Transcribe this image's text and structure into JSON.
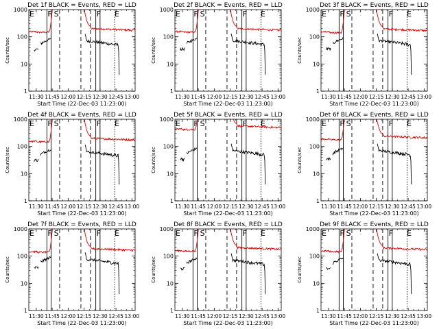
{
  "colors": {
    "events": "#000000",
    "lld": "#dd0000",
    "background": "#ffffff"
  },
  "chart_data": {
    "type": "line",
    "panels": [
      {
        "title": "Det 1f BLACK = Events, RED = LLD",
        "xlabel": "Start Time (22-Dec-03 11:23:00)",
        "ylabel": "Counts/sec",
        "red_base": 175,
        "black_base": 60
      },
      {
        "title": "Det 2f BLACK = Events, RED = LLD",
        "xlabel": "Start Time (22-Dec-03 11:23:00)",
        "ylabel": "Counts/sec",
        "red_base": 175,
        "black_base": 62
      },
      {
        "title": "Det 3f BLACK = Events, RED = LLD",
        "xlabel": "Start Time (22-Dec-03 11:23:00)",
        "ylabel": "Counts/sec",
        "red_base": 170,
        "black_base": 62
      },
      {
        "title": "Det 4f BLACK = Events, RED = LLD",
        "xlabel": "Start Time (22-Dec-03 11:23:00)",
        "ylabel": "Counts/sec",
        "red_base": 175,
        "black_base": 55
      },
      {
        "title": "Det 5f BLACK = Events, RED = LLD",
        "xlabel": "Start Time (22-Dec-03 11:23:00)",
        "ylabel": "Counts/sec",
        "red_base": 500,
        "black_base": 60
      },
      {
        "title": "Det 6f BLACK = Events, RED = LLD",
        "xlabel": "Start Time (22-Dec-03 11:23:00)",
        "ylabel": "Counts/sec",
        "red_base": 210,
        "black_base": 60
      },
      {
        "title": "Det 7f BLACK = Events, RED = LLD",
        "xlabel": "Start Time (22-Dec-03 11:23:00)",
        "ylabel": "Counts/sec",
        "red_base": 165,
        "black_base": 65
      },
      {
        "title": "Det 8f BLACK = Events, RED = LLD",
        "xlabel": "Start Time (22-Dec-03 11:23:00)",
        "ylabel": "Counts/sec",
        "red_base": 180,
        "black_base": 60
      },
      {
        "title": "Det 9f BLACK = Events, RED = LLD",
        "xlabel": "Start Time (22-Dec-03 11:23:00)",
        "ylabel": "Counts/sec",
        "red_base": 175,
        "black_base": 60
      }
    ],
    "x_range_min": [
      0,
      100
    ],
    "x_ticks": [
      {
        "label": "11:30",
        "min": 7
      },
      {
        "label": "11:45",
        "min": 22
      },
      {
        "label": "12:00",
        "min": 37
      },
      {
        "label": "12:15",
        "min": 52
      },
      {
        "label": "12:30",
        "min": 67
      },
      {
        "label": "12:45",
        "min": 82
      },
      {
        "label": "13:00",
        "min": 97
      }
    ],
    "y_range": [
      1,
      1000
    ],
    "y_scale": "log",
    "y_ticks": [
      {
        "label": "1",
        "value": 1
      },
      {
        "label": "10",
        "value": 10
      },
      {
        "label": "100",
        "value": 100
      },
      {
        "label": "1000",
        "value": 1000
      }
    ],
    "markers": [
      {
        "label": "E",
        "min": 0
      },
      {
        "label": "F",
        "min": 17
      },
      {
        "label": "S",
        "min": 23
      },
      {
        "label": "F",
        "min": 63
      },
      {
        "label": "E",
        "min": 80
      }
    ],
    "vlines": [
      {
        "min": 17,
        "style": "solid"
      },
      {
        "min": 21,
        "style": "solid"
      },
      {
        "min": 29,
        "style": "dashed"
      },
      {
        "min": 49,
        "style": "dashed"
      },
      {
        "min": 58,
        "style": "dashed"
      },
      {
        "min": 63,
        "style": "solid"
      },
      {
        "min": 67,
        "style": "solid"
      },
      {
        "min": 81,
        "style": "dotted"
      }
    ],
    "series": [
      {
        "name": "Events",
        "color": "#000000",
        "segments": [
          [
            5,
            21
          ],
          [
            53,
            85
          ]
        ]
      },
      {
        "name": "LLD",
        "color": "#dd0000",
        "segments": [
          [
            0,
            23
          ],
          [
            52,
            100
          ]
        ]
      }
    ]
  }
}
